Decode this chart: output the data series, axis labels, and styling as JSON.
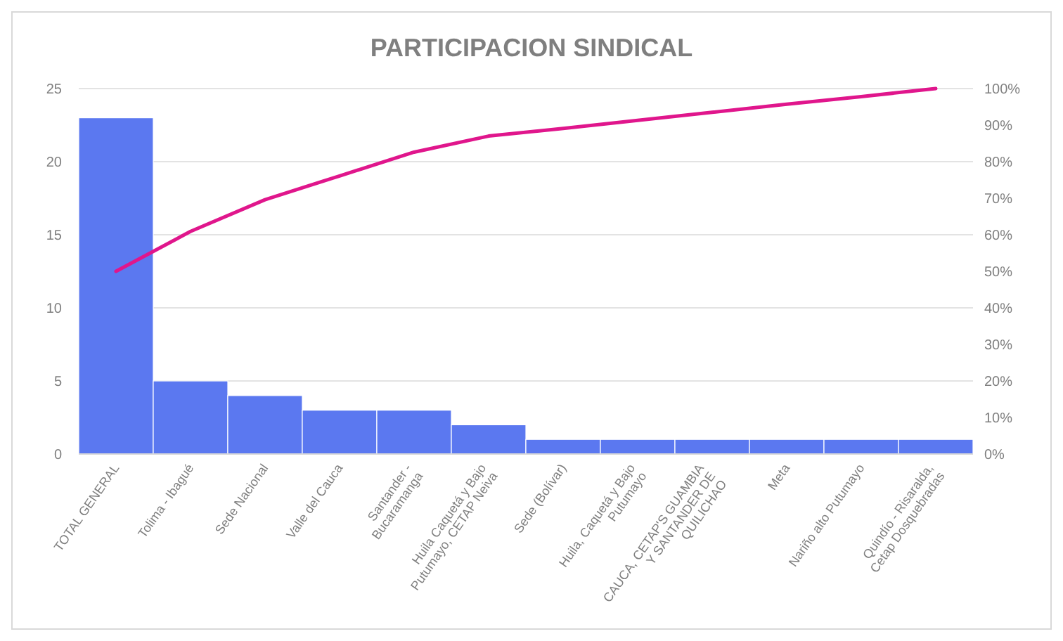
{
  "chart_data": {
    "type": "bar",
    "title": "PARTICIPACION SINDICAL",
    "categories": [
      "TOTAL GENERAL",
      "Tolima - Ibagué",
      "Sede Nacional",
      "Valle del Cauca",
      "Santander - Bucaramanga",
      "Huila Caquetá y Bajo Putumayo, CETAP Neiva",
      "Sede (Bolívar)",
      "Huila, Caquetá y Bajo Putumayo",
      "CAUCA, CETAP'S GUAMBIA Y SANTANDER DE QUILICHAO",
      "Meta",
      "Nariño alto Putumayo",
      "Quindío - Risaralda, Cetap Dosquebradas"
    ],
    "series": [
      {
        "color": "#5b78f0",
        "values": [
          23,
          5,
          4,
          3,
          3,
          2,
          1,
          1,
          1,
          1,
          1,
          1
        ]
      },
      {
        "type": "line",
        "axis": "y2",
        "color": "#e0168c",
        "values": [
          50,
          60.9,
          69.6,
          76.1,
          82.6,
          87,
          89.1,
          91.3,
          93.5,
          95.7,
          97.8,
          100
        ]
      }
    ],
    "ylim": [
      0,
      25
    ],
    "yticks": [
      0,
      5,
      10,
      15,
      20,
      25
    ],
    "y2lim": [
      0,
      100
    ],
    "y2ticks": [
      {
        "value": 0,
        "label": "0%"
      },
      {
        "value": 10,
        "label": "10%"
      },
      {
        "value": 20,
        "label": "20%"
      },
      {
        "value": 30,
        "label": "30%"
      },
      {
        "value": 40,
        "label": "40%"
      },
      {
        "value": 50,
        "label": "50%"
      },
      {
        "value": 60,
        "label": "60%"
      },
      {
        "value": 70,
        "label": "70%"
      },
      {
        "value": 80,
        "label": "80%"
      },
      {
        "value": 90,
        "label": "90%"
      },
      {
        "value": 100,
        "label": "100%"
      }
    ],
    "grid": "y",
    "line_style": "solid",
    "marker": "none"
  }
}
